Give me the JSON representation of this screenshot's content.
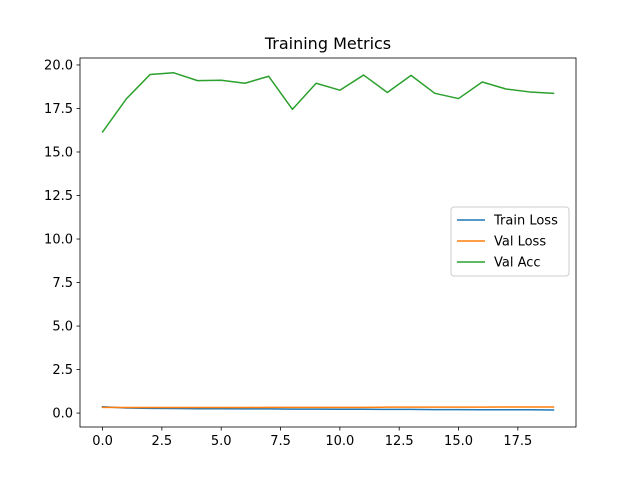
{
  "chart_data": {
    "type": "line",
    "title": "Training Metrics",
    "xlabel": "",
    "ylabel": "",
    "xlim": [
      -0.95,
      19.95
    ],
    "ylim": [
      -0.8,
      20.4
    ],
    "x_ticks": [
      0.0,
      2.5,
      5.0,
      7.5,
      10.0,
      12.5,
      15.0,
      17.5
    ],
    "x_tick_labels": [
      "0.0",
      "2.5",
      "5.0",
      "7.5",
      "10.0",
      "12.5",
      "15.0",
      "17.5"
    ],
    "y_ticks": [
      0.0,
      2.5,
      5.0,
      7.5,
      10.0,
      12.5,
      15.0,
      17.5,
      20.0
    ],
    "y_tick_labels": [
      "0.0",
      "2.5",
      "5.0",
      "7.5",
      "10.0",
      "12.5",
      "15.0",
      "17.5",
      "20.0"
    ],
    "grid": false,
    "legend_position": "center-right",
    "x": [
      0,
      1,
      2,
      3,
      4,
      5,
      6,
      7,
      8,
      9,
      10,
      11,
      12,
      13,
      14,
      15,
      16,
      17,
      18,
      19
    ],
    "series": [
      {
        "name": "Train Loss",
        "color": "#1f77b4",
        "values": [
          0.36,
          0.29,
          0.27,
          0.26,
          0.25,
          0.25,
          0.24,
          0.24,
          0.23,
          0.23,
          0.22,
          0.22,
          0.21,
          0.21,
          0.2,
          0.2,
          0.19,
          0.19,
          0.19,
          0.18
        ]
      },
      {
        "name": "Val Loss",
        "color": "#ff7f0e",
        "values": [
          0.33,
          0.32,
          0.32,
          0.32,
          0.32,
          0.32,
          0.32,
          0.33,
          0.33,
          0.33,
          0.33,
          0.33,
          0.34,
          0.34,
          0.34,
          0.34,
          0.34,
          0.35,
          0.35,
          0.35
        ]
      },
      {
        "name": "Val Acc",
        "color": "#2ca02c",
        "values": [
          16.15,
          18.05,
          19.45,
          19.55,
          19.1,
          19.12,
          18.95,
          19.35,
          17.45,
          18.95,
          18.55,
          19.42,
          18.42,
          19.4,
          18.37,
          18.07,
          19.02,
          18.62,
          18.45,
          18.37
        ]
      }
    ]
  }
}
